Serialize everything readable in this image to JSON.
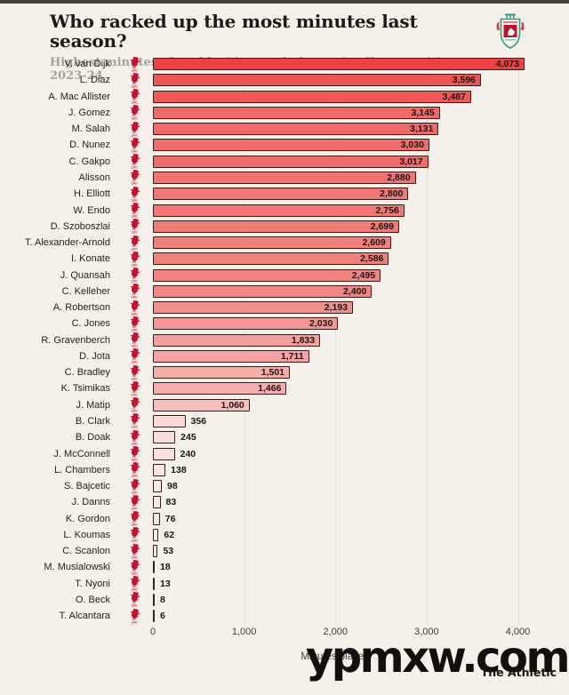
{
  "header": {
    "title": "Who racked up the most minutes last season?",
    "subtitle": "Highest minutes played by Liverpool players in all competitions, 2023-24",
    "club_crest_icon": "liverpool-crest-icon"
  },
  "chart_data": {
    "type": "bar",
    "orientation": "horizontal",
    "title": "Who racked up the most minutes last season?",
    "subtitle": "Highest minutes played by Liverpool players in all competitions, 2023-24",
    "xlabel": "Minutes played",
    "ylabel": "",
    "xlim": [
      0,
      4400
    ],
    "x_ticks": [
      0,
      1000,
      2000,
      3000,
      4000
    ],
    "grid": "dotted-vertical-at-ticks",
    "legend": "none",
    "row_icon": "liverbird-icon",
    "value_label_inside_threshold": 1000,
    "categories": [
      "V. van Dijk",
      "L. Diaz",
      "A. Mac Allister",
      "J. Gomez",
      "M. Salah",
      "D. Nunez",
      "C. Gakpo",
      "Alisson",
      "H. Elliott",
      "W. Endo",
      "D. Szoboszlai",
      "T. Alexander-Arnold",
      "I. Konate",
      "J. Quansah",
      "C. Kelleher",
      "A. Robertson",
      "C. Jones",
      "R. Gravenberch",
      "D. Jota",
      "C. Bradley",
      "K. Tsimikas",
      "J. Matip",
      "B. Clark",
      "B. Doak",
      "J. McConnell",
      "L. Chambers",
      "S. Bajcetic",
      "J. Danns",
      "K. Gordon",
      "L. Koumas",
      "C. Scanlon",
      "M. Musialowski",
      "T. Nyoni",
      "O. Beck",
      "T. Alcantara"
    ],
    "values": [
      4073,
      3596,
      3487,
      3145,
      3131,
      3030,
      3017,
      2880,
      2800,
      2756,
      2699,
      2609,
      2586,
      2495,
      2400,
      2193,
      2030,
      1833,
      1711,
      1501,
      1466,
      1060,
      356,
      245,
      240,
      138,
      98,
      83,
      76,
      62,
      53,
      18,
      13,
      8,
      6
    ]
  },
  "footer": {
    "attribution": "The Athletic"
  },
  "watermark": {
    "text": "ypmxw.com"
  },
  "colors": {
    "background": "#f4f1ea",
    "top_strip": "#45433f",
    "title_text": "#1d1b17",
    "subtitle_text": "#a6a29a",
    "bar_fill_max": "#ee4140",
    "bar_fill_min": "#fbeae7",
    "bar_border": "#32201e",
    "value_text": "#1a1714",
    "axis_text": "#3f3c38",
    "gridline": "#d8d4cb",
    "liverpool_red": "#c8102e",
    "crest_teal": "#2f9c82",
    "watermark_text": "#11100e"
  }
}
